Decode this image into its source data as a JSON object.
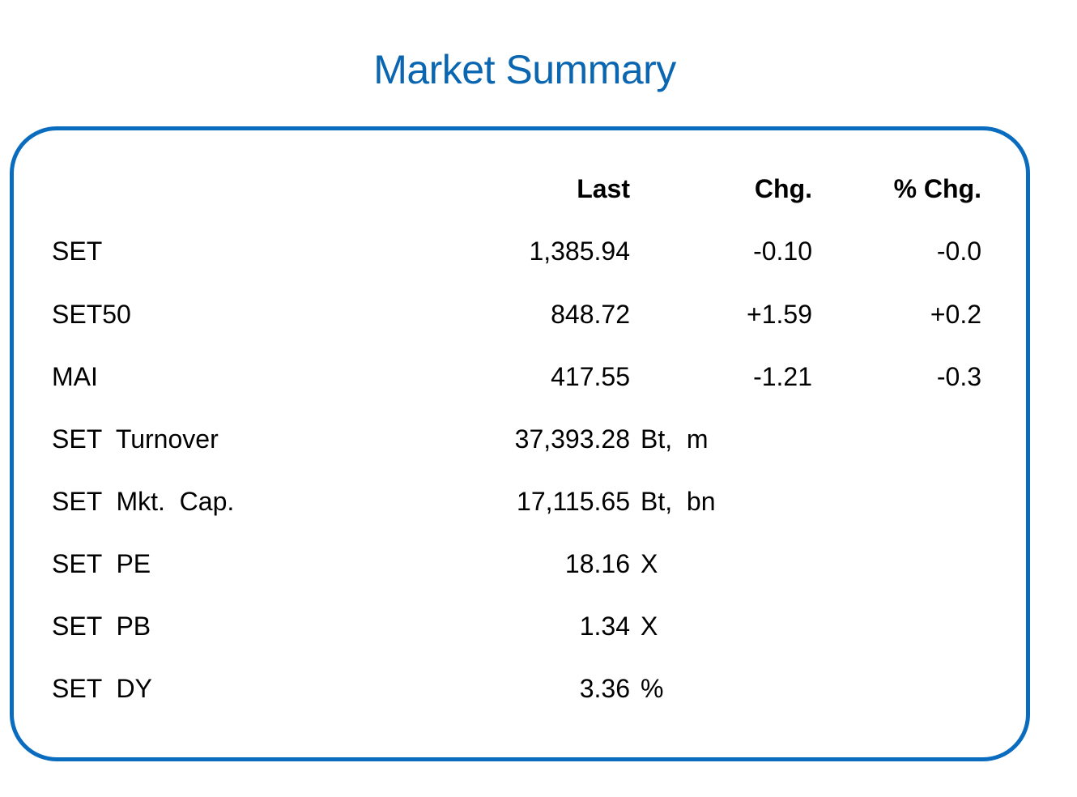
{
  "title": "Market Summary",
  "columns": {
    "last": "Last",
    "chg": "Chg.",
    "pchg": "% Chg."
  },
  "rows": [
    {
      "name": "SET",
      "last": "1,385.94",
      "unit": "",
      "chg": "-0.10",
      "pchg": "-0.0"
    },
    {
      "name": "SET50",
      "last": "848.72",
      "unit": "",
      "chg": "+1.59",
      "pchg": "+0.2"
    },
    {
      "name": "MAI",
      "last": "417.55",
      "unit": "",
      "chg": "-1.21",
      "pchg": "-0.3"
    },
    {
      "name": "SET  Turnover",
      "last": "37,393.28",
      "unit": "Bt,  m",
      "chg": "",
      "pchg": ""
    },
    {
      "name": "SET  Mkt.  Cap.",
      "last": "17,115.65",
      "unit": "Bt,  bn",
      "chg": "",
      "pchg": ""
    },
    {
      "name": "SET  PE",
      "last": "18.16",
      "unit": "X",
      "chg": "",
      "pchg": ""
    },
    {
      "name": "SET  PB",
      "last": "1.34",
      "unit": "X",
      "chg": "",
      "pchg": ""
    },
    {
      "name": "SET  DY",
      "last": "3.36",
      "unit": "%",
      "chg": "",
      "pchg": ""
    }
  ],
  "colors": {
    "title": "#0a66b0",
    "border": "#0a6cbf"
  }
}
